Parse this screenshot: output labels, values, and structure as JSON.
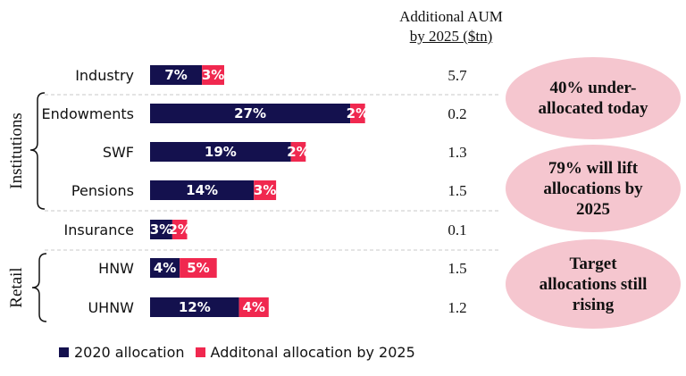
{
  "header": {
    "line1": "Additional AUM",
    "line2": "by 2025 ($tn)"
  },
  "groups": {
    "institutions": "Institutions",
    "retail": "Retail"
  },
  "callouts": [
    {
      "text": "40% under-allocated today"
    },
    {
      "text": "79% will lift allocations by 2025"
    },
    {
      "text": "Target allocations still rising"
    }
  ],
  "legend": [
    {
      "label": "2020 allocation",
      "color": "#14114e"
    },
    {
      "label": "Additonal allocation by 2025",
      "color": "#f0284f"
    }
  ],
  "chart_data": {
    "type": "bar",
    "orientation": "horizontal",
    "stacked": true,
    "categories": [
      "Industry",
      "Endowments",
      "SWF",
      "Pensions",
      "Insurance",
      "HNW",
      "UHNW"
    ],
    "series": [
      {
        "name": "2020 allocation",
        "color": "#14114e",
        "values": [
          7,
          27,
          19,
          14,
          3,
          4,
          12
        ],
        "labels": [
          "7%",
          "27%",
          "19%",
          "14%",
          "3%",
          "4%",
          "12%"
        ]
      },
      {
        "name": "Additonal allocation by 2025",
        "color": "#f0284f",
        "values": [
          3,
          2,
          2,
          3,
          2,
          5,
          4
        ],
        "labels": [
          "3%",
          "2%",
          "2%",
          "3%",
          "2%",
          "5%",
          "4%"
        ]
      }
    ],
    "additional_aum": [
      "5.7",
      "0.2",
      "1.3",
      "1.5",
      "0.1",
      "1.5",
      "1.2"
    ]
  }
}
